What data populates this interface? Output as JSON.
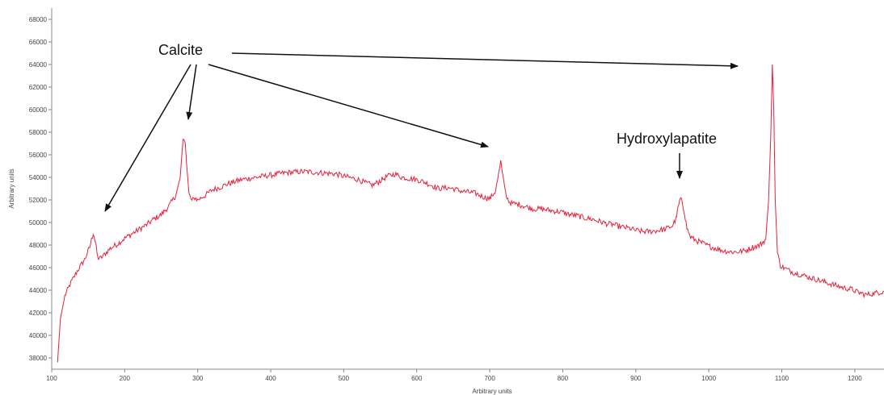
{
  "chart_data": {
    "type": "line",
    "title": "",
    "xlabel": "Arbitrary units",
    "ylabel": "Arbitrary units",
    "xlim": [
      100,
      1240
    ],
    "ylim": [
      37000,
      69000
    ],
    "x_ticks": [
      100,
      200,
      300,
      400,
      500,
      600,
      700,
      800,
      900,
      1000,
      1100,
      1200
    ],
    "y_ticks": [
      38000,
      40000,
      42000,
      44000,
      46000,
      48000,
      50000,
      52000,
      54000,
      56000,
      58000,
      60000,
      62000,
      64000,
      66000,
      68000
    ],
    "grid": false,
    "legend": "none",
    "series": [
      {
        "color": "#e8203a",
        "x": [
          108,
          112,
          118,
          125,
          135,
          145,
          152,
          157,
          160,
          163,
          166,
          170,
          180,
          190,
          200,
          210,
          220,
          230,
          240,
          250,
          260,
          270,
          276,
          280,
          283,
          285,
          288,
          292,
          296,
          300,
          310,
          320,
          330,
          340,
          350,
          360,
          370,
          380,
          390,
          400,
          410,
          420,
          430,
          440,
          450,
          460,
          470,
          480,
          490,
          500,
          510,
          520,
          530,
          540,
          550,
          560,
          570,
          580,
          590,
          600,
          610,
          620,
          630,
          640,
          650,
          660,
          670,
          680,
          690,
          700,
          708,
          712,
          715,
          718,
          722,
          726,
          730,
          740,
          750,
          760,
          770,
          780,
          790,
          800,
          810,
          820,
          830,
          840,
          850,
          860,
          870,
          880,
          890,
          900,
          910,
          920,
          930,
          940,
          950,
          955,
          958,
          961,
          964,
          967,
          970,
          975,
          980,
          990,
          1000,
          1010,
          1020,
          1030,
          1040,
          1050,
          1060,
          1070,
          1078,
          1082,
          1085,
          1087,
          1089,
          1091,
          1094,
          1098,
          1105,
          1115,
          1125,
          1135,
          1145,
          1155,
          1165,
          1175,
          1185,
          1195,
          1205,
          1215,
          1225,
          1240
        ],
        "y": [
          37600,
          41500,
          43500,
          44500,
          45700,
          46700,
          47800,
          49100,
          48200,
          46900,
          46800,
          47000,
          47700,
          48100,
          48600,
          49000,
          49400,
          49800,
          50300,
          50700,
          51400,
          52400,
          54000,
          57500,
          57000,
          55000,
          52500,
          51900,
          52200,
          52000,
          52400,
          52900,
          53100,
          53400,
          53600,
          53800,
          53900,
          54000,
          54100,
          54200,
          54300,
          54400,
          54450,
          54500,
          54500,
          54450,
          54400,
          54350,
          54300,
          54100,
          53950,
          53800,
          53500,
          53300,
          53700,
          54100,
          54300,
          54000,
          53900,
          53800,
          53600,
          53300,
          53000,
          53100,
          53000,
          52800,
          52700,
          52600,
          52300,
          52100,
          52800,
          54200,
          55300,
          54200,
          52500,
          51900,
          51700,
          51600,
          51400,
          51200,
          51200,
          51100,
          51000,
          50900,
          50700,
          50600,
          50400,
          50300,
          50100,
          49900,
          49800,
          49600,
          49500,
          49300,
          49200,
          49200,
          49300,
          49400,
          49700,
          50300,
          51300,
          52100,
          51700,
          50800,
          49500,
          48700,
          48500,
          48200,
          47900,
          47700,
          47500,
          47400,
          47400,
          47500,
          47800,
          48000,
          48500,
          52000,
          58000,
          64000,
          60000,
          52000,
          47300,
          46200,
          45900,
          45600,
          45400,
          45200,
          45000,
          44800,
          44600,
          44400,
          44200,
          44100,
          43800,
          43600,
          43700,
          43900
        ]
      }
    ],
    "annotations": [
      {
        "text": "Calcite"
      },
      {
        "text": "Hydroxylapatite"
      }
    ]
  }
}
